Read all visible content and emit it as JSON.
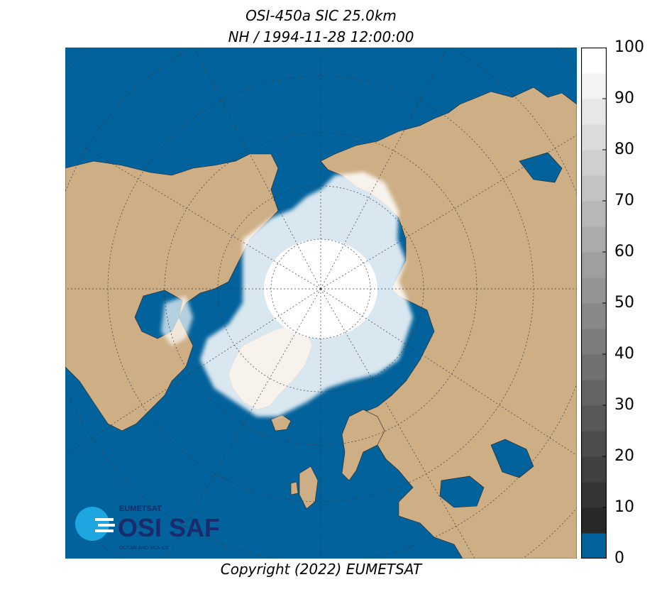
{
  "title": {
    "line1": "OSI-450a SIC 25.0km",
    "line2": "NH / 1994-11-28 12:00:00"
  },
  "copyright": "Copyright (2022)  EUMETSAT",
  "logo": {
    "org": "EUMETSAT",
    "product": "OSI SAF",
    "tagline": "OCEAN AND SEA ICE"
  },
  "colorbar": {
    "min": 0,
    "max": 100,
    "step": 5,
    "tick_labels": [
      "0",
      "10",
      "20",
      "30",
      "40",
      "50",
      "60",
      "70",
      "80",
      "90",
      "100"
    ],
    "tick_values": [
      0,
      10,
      20,
      30,
      40,
      50,
      60,
      70,
      80,
      90,
      100
    ],
    "lowest_bin_color": "#02629b"
  },
  "colors": {
    "ocean": "#02629b",
    "land": "#cdae85",
    "ice": "#ffffff",
    "graticule": "#3a3a3a"
  },
  "map_description_icons": [
    "ocean",
    "land",
    "sea-ice",
    "graticule",
    "coastline"
  ]
}
